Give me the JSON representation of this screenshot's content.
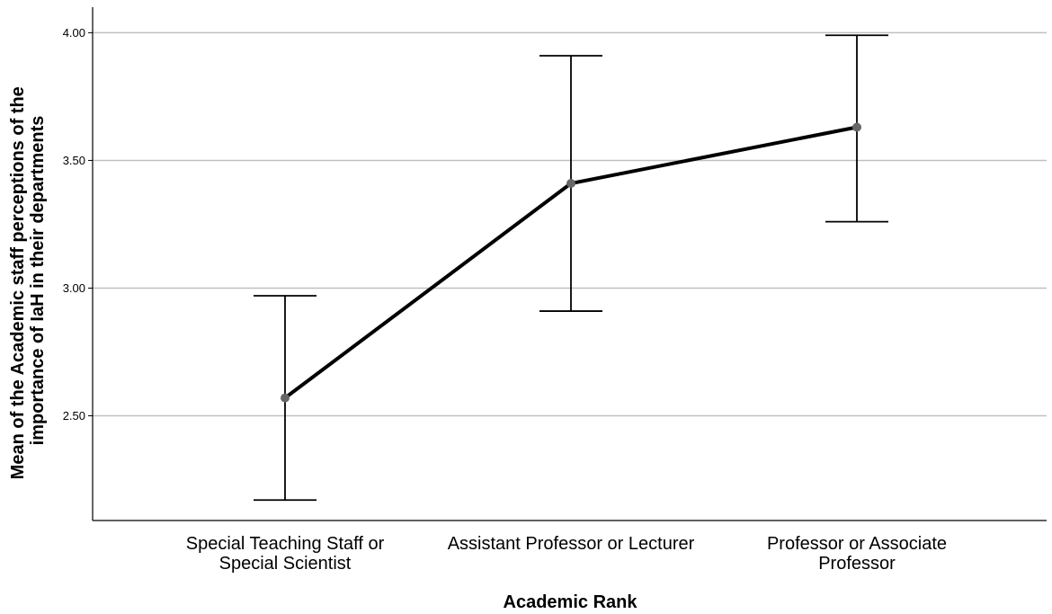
{
  "chart_data": {
    "type": "line",
    "title": "",
    "xlabel": "Academic Rank",
    "ylabel_lines": [
      "Mean of the Academic staff perceptions of the",
      "importance of IaH in their departments"
    ],
    "categories": [
      [
        "Special Teaching Staff or",
        "Special Scientist"
      ],
      [
        "Assistant Professor or Lecturer"
      ],
      [
        "Professor or Associate",
        "Professor"
      ]
    ],
    "series": [
      {
        "values": [
          2.57,
          3.41,
          3.63
        ],
        "error_low": [
          2.17,
          2.91,
          3.26
        ],
        "error_high": [
          2.97,
          3.91,
          3.99
        ]
      }
    ],
    "yticks": [
      2.5,
      3.0,
      3.5,
      4.0
    ],
    "ytick_labels": [
      "2.50",
      "3.00",
      "3.50",
      "4.00"
    ],
    "ylim": [
      2.09,
      4.1
    ],
    "grid": "horizontal",
    "legend": "none",
    "colors": {
      "line": "#000000",
      "marker": "#666666",
      "grid": "#c0c0c0",
      "axis": "#000000"
    }
  }
}
